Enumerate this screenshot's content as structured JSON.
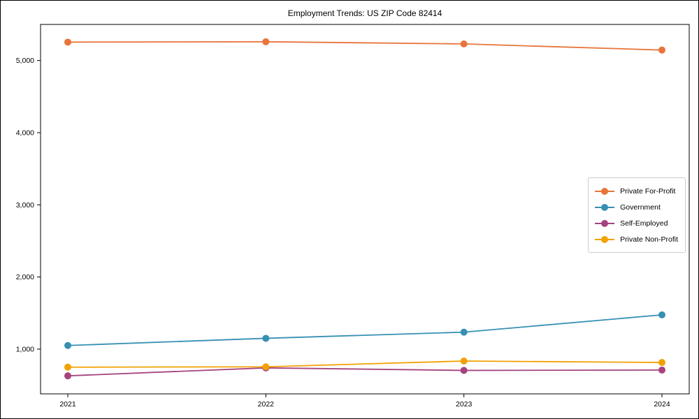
{
  "title": "Employment Trends: US ZIP Code 82414",
  "chart_data": {
    "type": "line",
    "title": "Employment Trends: US ZIP Code 82414",
    "x": [
      "2021",
      "2022",
      "2023",
      "2024"
    ],
    "series": [
      {
        "name": "Private For-Profit",
        "color": "#E8743B",
        "values": [
          5255,
          5260,
          5230,
          5145
        ]
      },
      {
        "name": "Government",
        "color": "#3690B4",
        "values": [
          1050,
          1150,
          1235,
          1475
        ]
      },
      {
        "name": "Self-Employed",
        "color": "#A5437E",
        "values": [
          630,
          740,
          705,
          710
        ]
      },
      {
        "name": "Private Non-Profit",
        "color": "#F2A104",
        "values": [
          750,
          755,
          835,
          815
        ]
      }
    ],
    "yticks": [
      1000,
      2000,
      3000,
      4000,
      5000
    ],
    "ytick_labels": [
      "1,000",
      "2,000",
      "3,000",
      "4,000",
      "5,000"
    ],
    "ylim": [
      380,
      5500
    ],
    "xlabel": "",
    "ylabel": "",
    "grid": false,
    "legend_position": "center right"
  }
}
